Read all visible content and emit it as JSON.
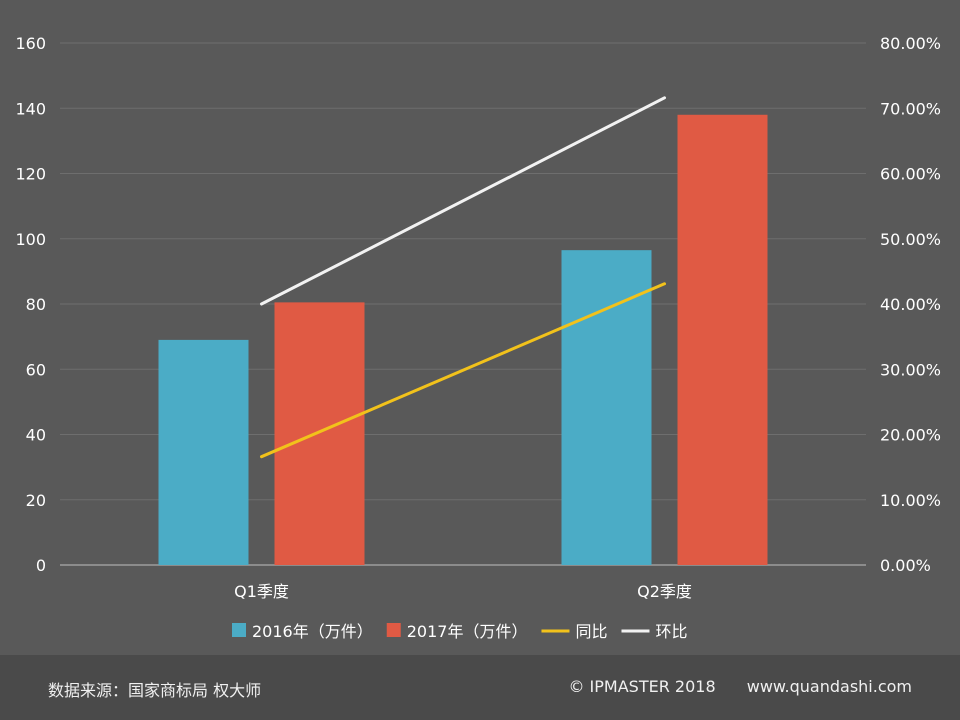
{
  "chart_data": {
    "type": "bar",
    "categories": [
      "Q1季度",
      "Q2季度"
    ],
    "series": [
      {
        "name": "2016年（万件）",
        "kind": "bar",
        "axis": "left",
        "color": "#4bacc6",
        "values": [
          69,
          96.5
        ]
      },
      {
        "name": "2017年（万件）",
        "kind": "bar",
        "axis": "left",
        "color": "#e05a44",
        "values": [
          80.5,
          138
        ]
      },
      {
        "name": "同比",
        "kind": "line",
        "axis": "right",
        "color": "#f2c21b",
        "values": [
          0.166,
          0.431
        ]
      },
      {
        "name": "环比",
        "kind": "line",
        "axis": "right",
        "color": "#f2f2f2",
        "values": [
          0.4,
          0.716
        ]
      }
    ],
    "ylim": [
      0,
      160
    ],
    "yticks": [
      "0",
      "20",
      "40",
      "60",
      "80",
      "100",
      "120",
      "140",
      "160"
    ],
    "y2lim": [
      0,
      0.8
    ],
    "y2ticks": [
      "0.00%",
      "10.00%",
      "20.00%",
      "30.00%",
      "40.00%",
      "50.00%",
      "60.00%",
      "70.00%",
      "80.00%"
    ],
    "grid": true,
    "legend_position": "bottom"
  },
  "footer": {
    "source": "数据来源：国家商标局  权大师",
    "copyright": "© IPMASTER  2018",
    "website": "www.quandashi.com"
  }
}
